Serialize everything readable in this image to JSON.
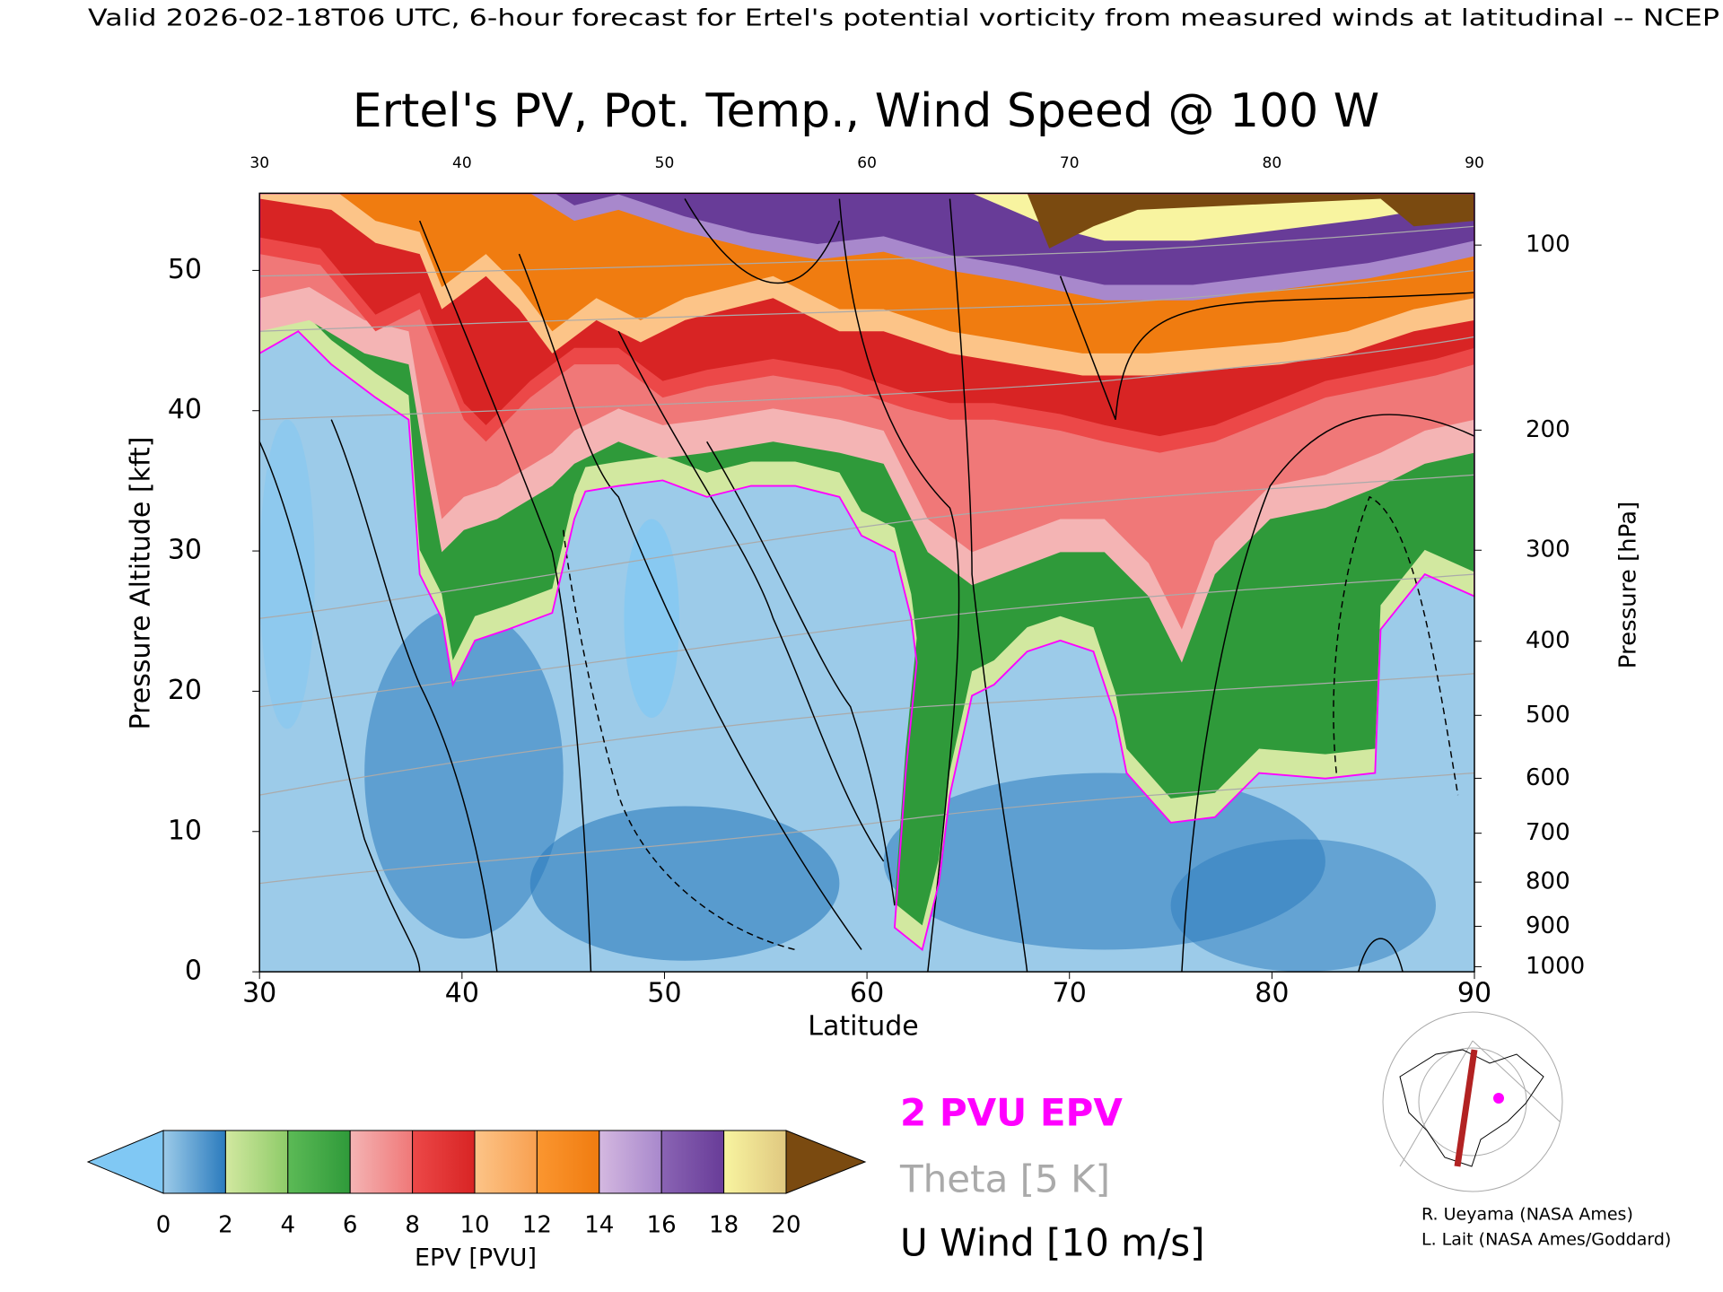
{
  "header": "Valid 2026-02-18T06 UTC, 6-hour forecast for Ertel's potential vorticity from measured winds at latitudinal -- NCEP",
  "chart_data": {
    "type": "contour",
    "title": "Ertel's PV, Pot. Temp., Wind Speed @ 100 W",
    "x_label": "Latitude",
    "y_label": "Pressure Altitude [kft]",
    "y2_label": "Pressure [hPa]",
    "xlim": [
      30,
      90
    ],
    "xticks": [
      30,
      40,
      50,
      60,
      70,
      80,
      90
    ],
    "ylim": [
      0,
      55.5
    ],
    "yticks": [
      0,
      10,
      20,
      30,
      40,
      50
    ],
    "y2lim": [
      1013.25,
      81
    ],
    "y2scale": "pressure-altitude",
    "y2ticks": [
      100,
      200,
      300,
      400,
      500,
      600,
      700,
      800,
      900,
      1000
    ],
    "colorbar": {
      "label": "EPV [PVU]",
      "lim": [
        0,
        20
      ],
      "ticks": [
        0,
        2,
        4,
        6,
        8,
        10,
        12,
        14,
        16,
        18,
        20
      ],
      "under_color": "#80c8f4",
      "over_color": "#7a4a10",
      "colors": [
        [
          "#9ccbe9",
          "#2b7bbd"
        ],
        [
          "#d2e8a0",
          "#8ecb68"
        ],
        [
          "#5cba56",
          "#2f9a3a"
        ],
        [
          "#f4b4b4",
          "#f07878"
        ],
        [
          "#ec4848",
          "#d82424"
        ],
        [
          "#fcc488",
          "#f8a050"
        ],
        [
          "#fb9630",
          "#f07c10"
        ],
        [
          "#d4b8e0",
          "#a888cc"
        ],
        [
          "#8a64b4",
          "#683c98"
        ],
        [
          "#f8f4a0",
          "#e0c880"
        ]
      ]
    },
    "legend": [
      {
        "name": "2 PVU EPV",
        "color": "#ff00ff"
      },
      {
        "name": "Theta [5 K]",
        "color": "#aaaaaa"
      },
      {
        "name": "U Wind [10 m/s]",
        "color": "#000000"
      }
    ]
  },
  "credits": [
    "R. Ueyama (NASA Ames)",
    "L. Lait (NASA Ames/Goddard)"
  ]
}
